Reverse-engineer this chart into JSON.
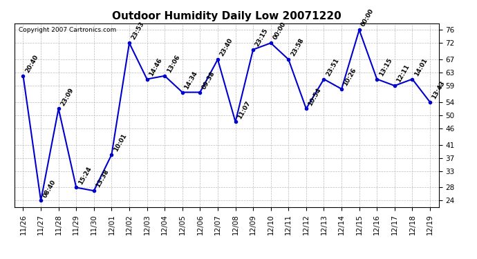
{
  "title": "Outdoor Humidity Daily Low 20071220",
  "copyright": "Copyright 2007 Cartronics.com",
  "dates": [
    "11/26",
    "11/27",
    "11/28",
    "11/29",
    "11/30",
    "12/01",
    "12/02",
    "12/03",
    "12/04",
    "12/05",
    "12/06",
    "12/07",
    "12/08",
    "12/09",
    "12/10",
    "12/11",
    "12/12",
    "12/13",
    "12/14",
    "12/15",
    "12/16",
    "12/17",
    "12/18",
    "12/19"
  ],
  "values": [
    62,
    24,
    52,
    28,
    27,
    38,
    72,
    61,
    62,
    57,
    57,
    67,
    48,
    70,
    72,
    67,
    52,
    61,
    58,
    76,
    61,
    59,
    61,
    54
  ],
  "times": [
    "20:40",
    "08:40",
    "23:09",
    "15:24",
    "13:38",
    "10:01",
    "23:53",
    "14:46",
    "13:06",
    "14:34",
    "09:38",
    "23:40",
    "11:07",
    "23:15",
    "00:00",
    "23:58",
    "10:54",
    "23:51",
    "10:26",
    "00:00",
    "13:15",
    "12:11",
    "14:01",
    "13:43"
  ],
  "line_color": "#0000cc",
  "marker_color": "#0000cc",
  "bg_color": "#ffffff",
  "grid_color": "#bbbbbb",
  "ylim": [
    22,
    78
  ],
  "yticks": [
    24,
    28,
    33,
    37,
    41,
    46,
    50,
    54,
    59,
    63,
    67,
    72,
    76
  ],
  "title_fontsize": 11,
  "label_fontsize": 6.5,
  "tick_fontsize": 7.5,
  "copyright_fontsize": 6.5,
  "fig_width": 6.9,
  "fig_height": 3.75,
  "dpi": 100
}
